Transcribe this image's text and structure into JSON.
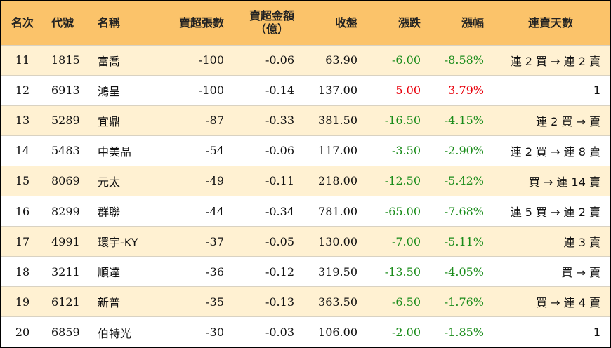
{
  "header": {
    "rank": "名次",
    "code": "代號",
    "name": "名稱",
    "net_lots": "賣超張數",
    "net_amount_l1": "賣超金額",
    "net_amount_l2": "（億）",
    "close": "收盤",
    "change": "漲跌",
    "change_pct": "漲幅",
    "streak": "連賣天數"
  },
  "colors": {
    "header_bg": "#fbc36a",
    "odd_row_bg": "#fff1d2",
    "up": "#e8000b",
    "down": "#1a8c1a"
  },
  "rows": [
    {
      "rank": "11",
      "code": "1815",
      "name": "富喬",
      "lots": "-100",
      "amount": "-0.06",
      "close": "63.90",
      "change": "-6.00",
      "pct": "-8.58%",
      "dir": "down",
      "streak": "連 2 買 → 連 2 賣"
    },
    {
      "rank": "12",
      "code": "6913",
      "name": "鴻呈",
      "lots": "-100",
      "amount": "-0.14",
      "close": "137.00",
      "change": "5.00",
      "pct": "3.79%",
      "dir": "up",
      "streak": "1"
    },
    {
      "rank": "13",
      "code": "5289",
      "name": "宜鼎",
      "lots": "-87",
      "amount": "-0.33",
      "close": "381.50",
      "change": "-16.50",
      "pct": "-4.15%",
      "dir": "down",
      "streak": "連 2 買 → 賣"
    },
    {
      "rank": "14",
      "code": "5483",
      "name": "中美晶",
      "lots": "-54",
      "amount": "-0.06",
      "close": "117.00",
      "change": "-3.50",
      "pct": "-2.90%",
      "dir": "down",
      "streak": "連 2 買 → 連 8 賣"
    },
    {
      "rank": "15",
      "code": "8069",
      "name": "元太",
      "lots": "-49",
      "amount": "-0.11",
      "close": "218.00",
      "change": "-12.50",
      "pct": "-5.42%",
      "dir": "down",
      "streak": "買 → 連 14 賣"
    },
    {
      "rank": "16",
      "code": "8299",
      "name": "群聯",
      "lots": "-44",
      "amount": "-0.34",
      "close": "781.00",
      "change": "-65.00",
      "pct": "-7.68%",
      "dir": "down",
      "streak": "連 5 買 → 連 2 賣"
    },
    {
      "rank": "17",
      "code": "4991",
      "name": "環宇-KY",
      "lots": "-37",
      "amount": "-0.05",
      "close": "130.00",
      "change": "-7.00",
      "pct": "-5.11%",
      "dir": "down",
      "streak": "連 3 賣"
    },
    {
      "rank": "18",
      "code": "3211",
      "name": "順達",
      "lots": "-36",
      "amount": "-0.12",
      "close": "319.50",
      "change": "-13.50",
      "pct": "-4.05%",
      "dir": "down",
      "streak": "買 → 賣"
    },
    {
      "rank": "19",
      "code": "6121",
      "name": "新普",
      "lots": "-35",
      "amount": "-0.13",
      "close": "363.50",
      "change": "-6.50",
      "pct": "-1.76%",
      "dir": "down",
      "streak": "買 → 連 4 賣"
    },
    {
      "rank": "20",
      "code": "6859",
      "name": "伯特光",
      "lots": "-30",
      "amount": "-0.03",
      "close": "106.00",
      "change": "-2.00",
      "pct": "-1.85%",
      "dir": "down",
      "streak": "1"
    }
  ]
}
